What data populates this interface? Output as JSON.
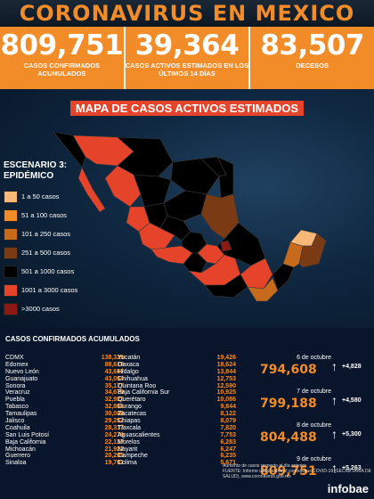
{
  "header": {
    "title": "CORONAVIRUS EN MEXICO"
  },
  "stats": [
    {
      "value": "809,751",
      "label": "CASOS CONFIRMADOS ACUMULADOS"
    },
    {
      "value": "39,364",
      "label": "CASOS ACTIVOS ESTIMADOS EN LOS ÚLTIMOS 14 DÍAS"
    },
    {
      "value": "83,507",
      "label": "DECESOS"
    }
  ],
  "map": {
    "title": "MAPA DE CASOS ACTIVOS ESTIMADOS",
    "scenario": "ESCENARIO 3: EPIDÉMICO",
    "legend": [
      {
        "label": "1 a 50 casos",
        "color": "#f7b878"
      },
      {
        "label": "51 a 100 casos",
        "color": "#f28c28"
      },
      {
        "label": "101 a 250 casos",
        "color": "#c76a1c"
      },
      {
        "label": "251 a 500 casos",
        "color": "#7a3a14"
      },
      {
        "label": "501 a 1000 casos",
        "color": "#000000"
      },
      {
        "label": "1001 a 3000 casos",
        "color": "#e5432a"
      },
      {
        "label": ">3000 casos",
        "color": "#8c1a12"
      }
    ]
  },
  "table": {
    "title": "CASOS CONFIRMADOS ACUMULADOS",
    "col1": [
      {
        "n": "CDMX",
        "v": "138,329"
      },
      {
        "n": "Edomex",
        "v": "88,619"
      },
      {
        "n": "Nuevo León",
        "v": "43,667"
      },
      {
        "n": "Guanajuato",
        "v": "43,054"
      },
      {
        "n": "Sonora",
        "v": "35,177"
      },
      {
        "n": "Veracruz",
        "v": "34,679"
      },
      {
        "n": "Puebla",
        "v": "32,922"
      },
      {
        "n": "Tabasco",
        "v": "32,860"
      },
      {
        "n": "Tamaulipas",
        "v": "30,066"
      },
      {
        "n": "Jalisco",
        "v": "29,252"
      },
      {
        "n": "Coahuila",
        "v": "28,317"
      },
      {
        "n": "San Luis Potosí",
        "v": "24,279"
      },
      {
        "n": "Baja California",
        "v": "22,137"
      },
      {
        "n": "Michoacán",
        "v": "21,927"
      },
      {
        "n": "Guerrero",
        "v": "20,295"
      },
      {
        "n": "Sinaloa",
        "v": "19,791"
      }
    ],
    "col2": [
      {
        "n": "Yucatán",
        "v": "19,426"
      },
      {
        "n": "Oaxaca",
        "v": "18,624"
      },
      {
        "n": "Hidalgo",
        "v": "13,844"
      },
      {
        "n": "Chihuahua",
        "v": "12,753"
      },
      {
        "n": "Quintana Roo",
        "v": "12,590"
      },
      {
        "n": "Baja California Sur",
        "v": "10,925"
      },
      {
        "n": "Querétaro",
        "v": "10,086"
      },
      {
        "n": "Durango",
        "v": "9,844"
      },
      {
        "n": "Zacatecas",
        "v": "8,122"
      },
      {
        "n": "Chiapas",
        "v": "8,079"
      },
      {
        "n": "Tlaxcala",
        "v": "7,820"
      },
      {
        "n": "Aguascalientes",
        "v": "7,753"
      },
      {
        "n": "Morelos",
        "v": "6,283"
      },
      {
        "n": "Nayarit",
        "v": "6,247"
      },
      {
        "n": "Campeche",
        "v": "6,235"
      },
      {
        "n": "Colima",
        "v": "5,671"
      }
    ]
  },
  "timeline": [
    {
      "date": "6 de octubre",
      "value": "794,608",
      "inc": "+4,828"
    },
    {
      "date": "7 de octubre",
      "value": "799,188",
      "inc": "+4,580"
    },
    {
      "date": "8 de octubre",
      "value": "804,488",
      "inc": "+5,300"
    },
    {
      "date": "9 de octubre",
      "value": "809,751",
      "inc": "+5,263"
    }
  ],
  "footer": {
    "note_legend": "Aumento de casos respecto al día anterior",
    "source": "FUENTE: Informe diario sobre el coronavirus COVID-19 (SECRETARÍA DE SALUD), www.coronavirus.gob.mx",
    "brand": "infobae"
  }
}
